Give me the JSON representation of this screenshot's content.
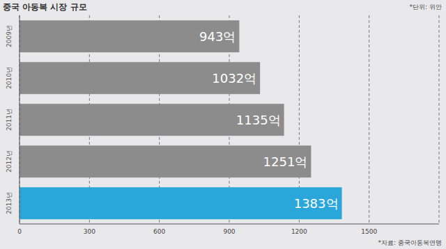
{
  "chart_data": {
    "type": "bar",
    "title": "중국 아동복 시장 규모",
    "annotations": [
      "*단위: 위안",
      "*자료: 중국아동복연맹"
    ],
    "orientation": "horizontal",
    "categories": [
      "2009년",
      "2010년",
      "2011년",
      "2012년",
      "2013년"
    ],
    "values": [
      943,
      1032,
      1135,
      1251,
      1383
    ],
    "value_labels": [
      "943억",
      "1032억",
      "1135억",
      "1251억",
      "1383억"
    ],
    "colors": [
      "#8c8c8c",
      "#8c8c8c",
      "#8c8c8c",
      "#8c8c8c",
      "#2ba6da"
    ],
    "xlim": [
      0,
      1800
    ],
    "xticks": [
      0,
      300,
      600,
      900,
      1200,
      1500
    ],
    "grid": true,
    "data_labels": true
  }
}
